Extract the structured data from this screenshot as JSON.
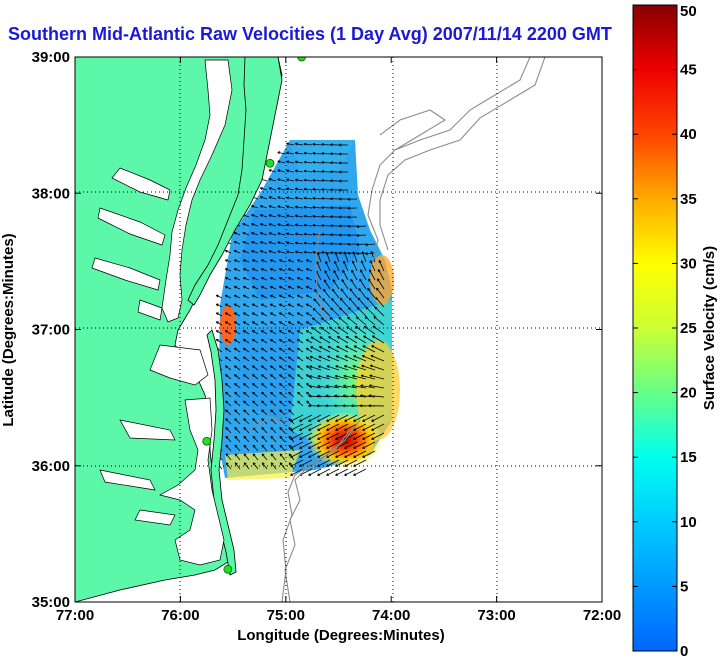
{
  "title": "Southern Mid-Atlantic Raw Velocities (1 Day Avg) 2007/11/14 2200 GMT",
  "x_axis": {
    "label": "Longitude (Degrees:Minutes)",
    "ticks": [
      "77:00",
      "76:00",
      "75:00",
      "74:00",
      "73:00",
      "72:00"
    ],
    "values": [
      -77,
      -76,
      -75,
      -74,
      -73,
      -72
    ]
  },
  "y_axis": {
    "label": "Latitude (Degrees:Minutes)",
    "ticks": [
      "39:00",
      "38:00",
      "37:00",
      "36:00",
      "35:00"
    ],
    "values": [
      39,
      38,
      37,
      36,
      35
    ]
  },
  "colorbar": {
    "label": "Surface Velocity (cm/s)",
    "ticks": [
      "50",
      "45",
      "40",
      "35",
      "30",
      "25",
      "20",
      "15",
      "10",
      "5",
      "0"
    ],
    "values": [
      50,
      45,
      40,
      35,
      30,
      25,
      20,
      15,
      10,
      5,
      0
    ],
    "range": [
      0,
      50
    ]
  },
  "colors": {
    "land": "#5cf7a8",
    "coastline": "#000000",
    "bathymetry": "#8c8c8c",
    "site_marker": "#22dd22",
    "title": "#1a1ad6"
  },
  "sites": [
    {
      "lon": -74.85,
      "lat": 39.0
    },
    {
      "lon": -75.15,
      "lat": 38.22
    },
    {
      "lon": -75.75,
      "lat": 36.18
    },
    {
      "lon": -75.55,
      "lat": 35.24
    }
  ]
}
